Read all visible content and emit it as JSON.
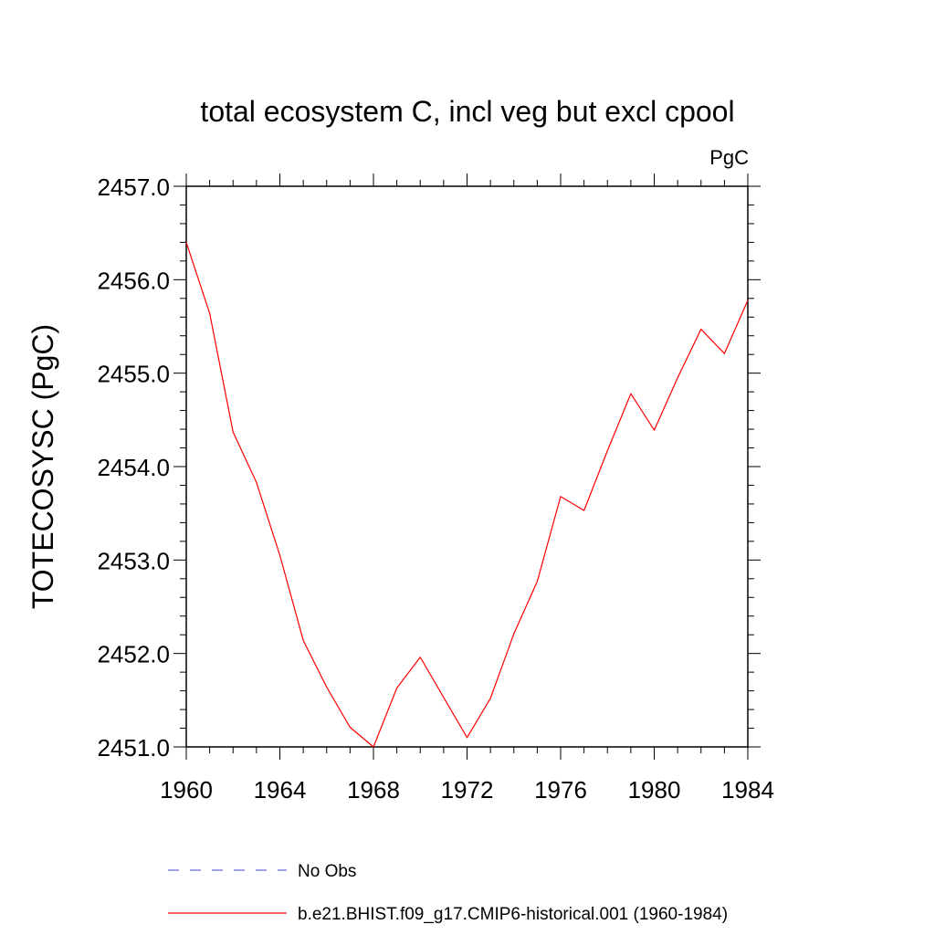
{
  "chart_data": {
    "type": "line",
    "title": "total ecosystem C, incl veg but excl cpool",
    "units_label": "PgC",
    "xlabel": "",
    "ylabel": "TOTECOSYSC  (PgC)",
    "xlim": [
      1960,
      1984
    ],
    "ylim": [
      2451.0,
      2457.0
    ],
    "x_ticks": [
      1960,
      1964,
      1968,
      1972,
      1976,
      1980,
      1984
    ],
    "x_tick_labels": [
      "1960",
      "1964",
      "1968",
      "1972",
      "1976",
      "1980",
      "1984"
    ],
    "y_ticks": [
      2451.0,
      2452.0,
      2453.0,
      2454.0,
      2455.0,
      2456.0,
      2457.0
    ],
    "y_tick_labels": [
      "2451.0",
      "2452.0",
      "2453.0",
      "2454.0",
      "2455.0",
      "2456.0",
      "2457.0"
    ],
    "grid": false,
    "legend_position": "bottom",
    "series": [
      {
        "name": "b.e21.BHIST.f09_g17.CMIP6-historical.001 (1960-1984)",
        "color": "#ff0000",
        "style": "solid",
        "x": [
          1960,
          1961,
          1962,
          1963,
          1964,
          1965,
          1966,
          1967,
          1968,
          1969,
          1970,
          1971,
          1972,
          1973,
          1974,
          1975,
          1976,
          1977,
          1978,
          1979,
          1980,
          1981,
          1982,
          1983,
          1984
        ],
        "y": [
          2456.4,
          2455.64,
          2454.37,
          2453.83,
          2453.05,
          2452.14,
          2451.64,
          2451.21,
          2451.0,
          2451.63,
          2451.96,
          2451.53,
          2451.1,
          2451.52,
          2452.21,
          2452.77,
          2453.68,
          2453.53,
          2454.17,
          2454.78,
          2454.39,
          2454.95,
          2455.47,
          2455.21,
          2455.78
        ]
      }
    ],
    "legend": [
      {
        "label": "No Obs",
        "color": "#6b6bd6",
        "style": "dashed"
      },
      {
        "label": "b.e21.BHIST.f09_g17.CMIP6-historical.001 (1960-1984)",
        "color": "#ff0000",
        "style": "solid"
      }
    ]
  }
}
